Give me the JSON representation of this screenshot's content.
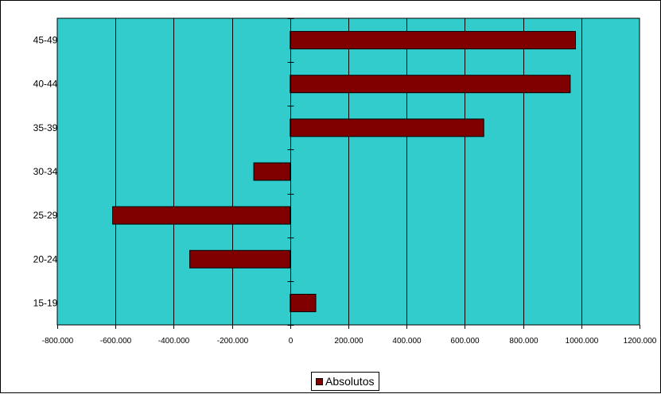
{
  "chart_data": {
    "type": "bar",
    "orientation": "horizontal",
    "categories": [
      "45-49",
      "40-44",
      "35-39",
      "30-34",
      "25-29",
      "20-24",
      "15-19"
    ],
    "series": [
      {
        "name": "Absolutos",
        "values": [
          980,
          962,
          665,
          -125,
          -610,
          -345,
          88
        ],
        "color": "#800000"
      }
    ],
    "xlim": [
      -800,
      1200
    ],
    "x_ticks": [
      -800,
      -600,
      -400,
      -200,
      0,
      200,
      400,
      600,
      800,
      1000,
      1200
    ],
    "x_tick_labels": [
      "-800.000",
      "-600.000",
      "-400.000",
      "-200.000",
      "0",
      "200.000",
      "400.000",
      "600.000",
      "800.000",
      "1000.000",
      "1200.000"
    ],
    "plot_background": "#33CCCC",
    "grid": "vertical",
    "legend_position": "bottom",
    "title": "",
    "xlabel": "",
    "ylabel": ""
  }
}
